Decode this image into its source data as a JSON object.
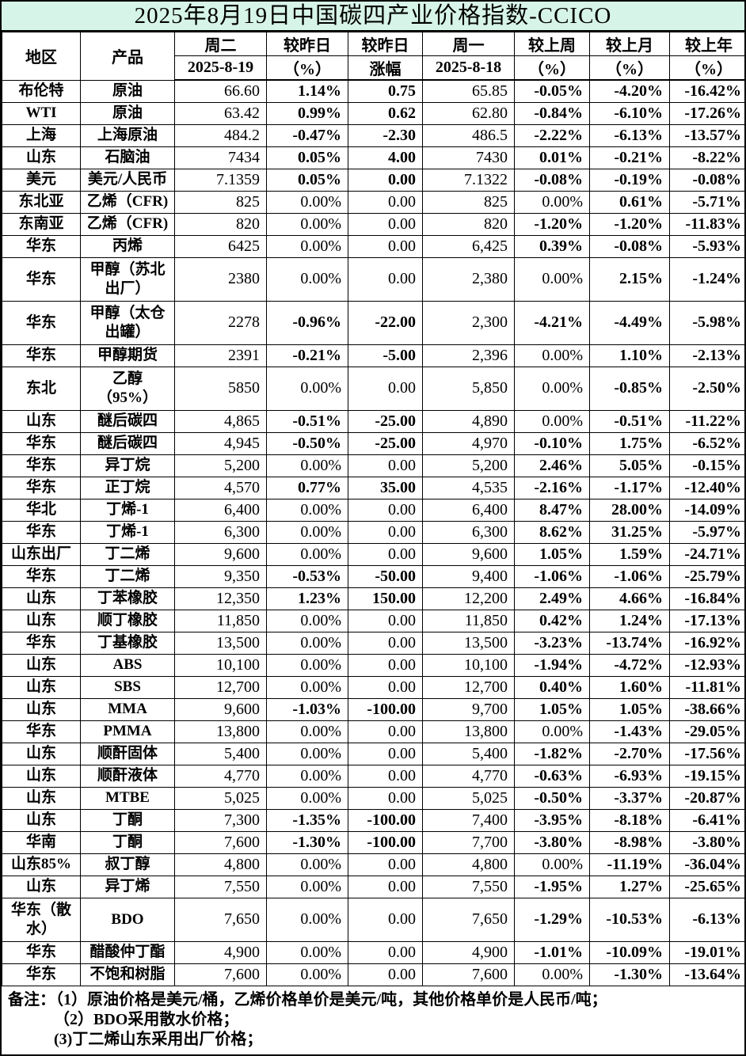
{
  "title": "2025年8月19日中国碳四产业价格指数-CCICO",
  "colors": {
    "red": "#FF0000",
    "green": "#00A95C",
    "black": "#000000",
    "title_bg": "#D7F4E8",
    "border": "#000000"
  },
  "table": {
    "corner_headers": {
      "region": "地区",
      "product": "产品"
    },
    "column_headers": [
      {
        "top": "周二",
        "bottom": "2025-8-19"
      },
      {
        "top": "较昨日",
        "bottom": "（%）"
      },
      {
        "top": "较昨日",
        "bottom": "涨幅"
      },
      {
        "top": "周一",
        "bottom": "2025-8-18"
      },
      {
        "top": "较上周",
        "bottom": "（%）"
      },
      {
        "top": "较上月",
        "bottom": "（%）"
      },
      {
        "top": "较上年",
        "bottom": "（%）"
      }
    ],
    "rows": [
      {
        "region": "布伦特",
        "product": "原油",
        "values": [
          "66.60",
          "1.14%",
          "0.75",
          "65.85",
          "-0.05%",
          "-4.20%",
          "-16.42%"
        ],
        "colors": [
          "k",
          "r",
          "r",
          "k",
          "g",
          "g",
          "g"
        ]
      },
      {
        "region": "WTI",
        "product": "原油",
        "values": [
          "63.42",
          "0.99%",
          "0.62",
          "62.80",
          "-0.84%",
          "-6.10%",
          "-17.26%"
        ],
        "colors": [
          "k",
          "r",
          "r",
          "k",
          "g",
          "g",
          "g"
        ]
      },
      {
        "region": "上海",
        "product": "上海原油",
        "values": [
          "484.2",
          "-0.47%",
          "-2.30",
          "486.5",
          "-2.22%",
          "-6.13%",
          "-13.57%"
        ],
        "colors": [
          "k",
          "g",
          "g",
          "k",
          "g",
          "g",
          "g"
        ]
      },
      {
        "region": "山东",
        "product": "石脑油",
        "values": [
          "7434",
          "0.05%",
          "4.00",
          "7430",
          "0.01%",
          "-0.21%",
          "-8.22%"
        ],
        "colors": [
          "k",
          "r",
          "r",
          "k",
          "r",
          "g",
          "g"
        ]
      },
      {
        "region": "美元",
        "product": "美元/人民币",
        "values": [
          "7.1359",
          "0.05%",
          "0.00",
          "7.1322",
          "-0.08%",
          "-0.19%",
          "-0.08%"
        ],
        "colors": [
          "k",
          "r",
          "r",
          "k",
          "g",
          "g",
          "g"
        ]
      },
      {
        "region": "东北亚",
        "product": "乙烯（CFR)",
        "values": [
          "825",
          "0.00%",
          "0.00",
          "825",
          "0.00%",
          "0.61%",
          "-5.71%"
        ],
        "colors": [
          "k",
          "k",
          "k",
          "k",
          "k",
          "r",
          "g"
        ]
      },
      {
        "region": "东南亚",
        "product": "乙烯（CFR)",
        "values": [
          "820",
          "0.00%",
          "0.00",
          "820",
          "-1.20%",
          "-1.20%",
          "-11.83%"
        ],
        "colors": [
          "k",
          "k",
          "k",
          "k",
          "g",
          "g",
          "g"
        ]
      },
      {
        "region": "华东",
        "product": "丙烯",
        "values": [
          "6425",
          "0.00%",
          "0.00",
          "6,425",
          "0.39%",
          "-0.08%",
          "-5.93%"
        ],
        "colors": [
          "k",
          "k",
          "k",
          "k",
          "r",
          "g",
          "g"
        ]
      },
      {
        "region": "华东",
        "product": "甲醇（苏北\n出厂）",
        "tall": true,
        "values": [
          "2380",
          "0.00%",
          "0.00",
          "2,380",
          "0.00%",
          "2.15%",
          "-1.24%"
        ],
        "colors": [
          "k",
          "k",
          "k",
          "k",
          "k",
          "r",
          "g"
        ]
      },
      {
        "region": "华东",
        "product": "甲醇（太仓\n出罐）",
        "tall": true,
        "values": [
          "2278",
          "-0.96%",
          "-22.00",
          "2,300",
          "-4.21%",
          "-4.49%",
          "-5.98%"
        ],
        "colors": [
          "k",
          "g",
          "g",
          "k",
          "g",
          "g",
          "g"
        ]
      },
      {
        "region": "华东",
        "product": "甲醇期货",
        "values": [
          "2391",
          "-0.21%",
          "-5.00",
          "2,396",
          "0.00%",
          "1.10%",
          "-2.13%"
        ],
        "colors": [
          "k",
          "g",
          "g",
          "k",
          "k",
          "r",
          "g"
        ]
      },
      {
        "region": "东北",
        "product": "乙醇\n（95%）",
        "tall": true,
        "values": [
          "5850",
          "0.00%",
          "0.00",
          "5,850",
          "0.00%",
          "-0.85%",
          "-2.50%"
        ],
        "colors": [
          "k",
          "k",
          "k",
          "k",
          "k",
          "g",
          "g"
        ]
      },
      {
        "region": "山东",
        "product": "醚后碳四",
        "values": [
          "4,865",
          "-0.51%",
          "-25.00",
          "4,890",
          "0.00%",
          "-0.51%",
          "-11.22%"
        ],
        "colors": [
          "k",
          "g",
          "g",
          "k",
          "k",
          "g",
          "g"
        ]
      },
      {
        "region": "华东",
        "product": "醚后碳四",
        "values": [
          "4,945",
          "-0.50%",
          "-25.00",
          "4,970",
          "-0.10%",
          "1.75%",
          "-6.52%"
        ],
        "colors": [
          "k",
          "g",
          "g",
          "k",
          "g",
          "r",
          "g"
        ]
      },
      {
        "region": "华东",
        "product": "异丁烷",
        "values": [
          "5,200",
          "0.00%",
          "0.00",
          "5,200",
          "2.46%",
          "5.05%",
          "-0.15%"
        ],
        "colors": [
          "k",
          "k",
          "k",
          "k",
          "r",
          "r",
          "g"
        ]
      },
      {
        "region": "华东",
        "product": "正丁烷",
        "values": [
          "4,570",
          "0.77%",
          "35.00",
          "4,535",
          "-2.16%",
          "-1.17%",
          "-12.40%"
        ],
        "colors": [
          "k",
          "r",
          "r",
          "k",
          "g",
          "g",
          "g"
        ]
      },
      {
        "region": "华北",
        "product": "丁烯-1",
        "values": [
          "6,400",
          "0.00%",
          "0.00",
          "6,400",
          "8.47%",
          "28.00%",
          "-14.09%"
        ],
        "colors": [
          "k",
          "k",
          "k",
          "k",
          "r",
          "r",
          "g"
        ]
      },
      {
        "region": "华东",
        "product": "丁烯-1",
        "values": [
          "6,300",
          "0.00%",
          "0.00",
          "6,300",
          "8.62%",
          "31.25%",
          "-5.97%"
        ],
        "colors": [
          "k",
          "k",
          "k",
          "k",
          "r",
          "r",
          "g"
        ]
      },
      {
        "region": "山东出厂",
        "product": "丁二烯",
        "values": [
          "9,600",
          "0.00%",
          "0.00",
          "9,600",
          "1.05%",
          "1.59%",
          "-24.71%"
        ],
        "colors": [
          "k",
          "k",
          "k",
          "k",
          "r",
          "r",
          "g"
        ]
      },
      {
        "region": "华东",
        "product": "丁二烯",
        "values": [
          "9,350",
          "-0.53%",
          "-50.00",
          "9,400",
          "-1.06%",
          "-1.06%",
          "-25.79%"
        ],
        "colors": [
          "k",
          "g",
          "g",
          "k",
          "g",
          "g",
          "g"
        ]
      },
      {
        "region": "山东",
        "product": "丁苯橡胶",
        "values": [
          "12,350",
          "1.23%",
          "150.00",
          "12,200",
          "2.49%",
          "4.66%",
          "-16.84%"
        ],
        "colors": [
          "k",
          "r",
          "r",
          "k",
          "r",
          "r",
          "g"
        ]
      },
      {
        "region": "山东",
        "product": "顺丁橡胶",
        "values": [
          "11,850",
          "0.00%",
          "0.00",
          "11,850",
          "0.42%",
          "1.24%",
          "-17.13%"
        ],
        "colors": [
          "k",
          "k",
          "k",
          "k",
          "r",
          "r",
          "g"
        ]
      },
      {
        "region": "华东",
        "product": "丁基橡胶",
        "values": [
          "13,500",
          "0.00%",
          "0.00",
          "13,500",
          "-3.23%",
          "-13.74%",
          "-16.92%"
        ],
        "colors": [
          "k",
          "k",
          "k",
          "k",
          "g",
          "g",
          "g"
        ]
      },
      {
        "region": "山东",
        "product": "ABS",
        "values": [
          "10,100",
          "0.00%",
          "0.00",
          "10,100",
          "-1.94%",
          "-4.72%",
          "-12.93%"
        ],
        "colors": [
          "k",
          "k",
          "k",
          "k",
          "g",
          "g",
          "g"
        ]
      },
      {
        "region": "山东",
        "product": "SBS",
        "values": [
          "12,700",
          "0.00%",
          "0.00",
          "12,700",
          "0.40%",
          "1.60%",
          "-11.81%"
        ],
        "colors": [
          "k",
          "k",
          "k",
          "k",
          "r",
          "r",
          "g"
        ]
      },
      {
        "region": "山东",
        "product": "MMA",
        "values": [
          "9,600",
          "-1.03%",
          "-100.00",
          "9,700",
          "1.05%",
          "1.05%",
          "-38.66%"
        ],
        "colors": [
          "k",
          "g",
          "g",
          "k",
          "r",
          "r",
          "g"
        ]
      },
      {
        "region": "华东",
        "product": "PMMA",
        "values": [
          "13,800",
          "0.00%",
          "0.00",
          "13,800",
          "0.00%",
          "-1.43%",
          "-29.05%"
        ],
        "colors": [
          "k",
          "k",
          "k",
          "k",
          "k",
          "g",
          "g"
        ]
      },
      {
        "region": "山东",
        "product": "顺酐固体",
        "values": [
          "5,400",
          "0.00%",
          "0.00",
          "5,400",
          "-1.82%",
          "-2.70%",
          "-17.56%"
        ],
        "colors": [
          "k",
          "k",
          "k",
          "k",
          "g",
          "g",
          "g"
        ]
      },
      {
        "region": "山东",
        "product": "顺酐液体",
        "values": [
          "4,770",
          "0.00%",
          "0.00",
          "4,770",
          "-0.63%",
          "-6.93%",
          "-19.15%"
        ],
        "colors": [
          "k",
          "k",
          "k",
          "k",
          "g",
          "g",
          "g"
        ]
      },
      {
        "region": "山东",
        "product": "MTBE",
        "values": [
          "5,025",
          "0.00%",
          "0.00",
          "5,025",
          "-0.50%",
          "-3.37%",
          "-20.87%"
        ],
        "colors": [
          "k",
          "k",
          "k",
          "k",
          "g",
          "g",
          "g"
        ]
      },
      {
        "region": "山东",
        "product": "丁酮",
        "values": [
          "7,300",
          "-1.35%",
          "-100.00",
          "7,400",
          "-3.95%",
          "-8.18%",
          "-6.41%"
        ],
        "colors": [
          "k",
          "g",
          "g",
          "k",
          "g",
          "g",
          "g"
        ]
      },
      {
        "region": "华南",
        "product": "丁酮",
        "values": [
          "7,600",
          "-1.30%",
          "-100.00",
          "7,700",
          "-3.80%",
          "-8.98%",
          "-3.80%"
        ],
        "colors": [
          "k",
          "g",
          "g",
          "k",
          "g",
          "g",
          "g"
        ]
      },
      {
        "region": "山东85%",
        "product": "叔丁醇",
        "values": [
          "4,800",
          "0.00%",
          "0.00",
          "4,800",
          "0.00%",
          "-11.19%",
          "-36.04%"
        ],
        "colors": [
          "k",
          "k",
          "k",
          "k",
          "k",
          "g",
          "g"
        ]
      },
      {
        "region": "山东",
        "product": "异丁烯",
        "values": [
          "7,550",
          "0.00%",
          "0.00",
          "7,550",
          "-1.95%",
          "1.27%",
          "-25.65%"
        ],
        "colors": [
          "k",
          "k",
          "k",
          "k",
          "g",
          "r",
          "g"
        ]
      },
      {
        "region": "华东（散\n水）",
        "product": "BDO",
        "tall": true,
        "values": [
          "7,650",
          "0.00%",
          "0.00",
          "7,650",
          "-1.29%",
          "-10.53%",
          "-6.13%"
        ],
        "colors": [
          "k",
          "k",
          "k",
          "k",
          "g",
          "g",
          "g"
        ]
      },
      {
        "region": "华东",
        "product": "醋酸仲丁酯",
        "values": [
          "4,900",
          "0.00%",
          "0.00",
          "4,900",
          "-1.01%",
          "-10.09%",
          "-19.01%"
        ],
        "colors": [
          "k",
          "k",
          "k",
          "k",
          "g",
          "g",
          "g"
        ]
      },
      {
        "region": "华东",
        "product": "不饱和树脂",
        "values": [
          "7,600",
          "0.00%",
          "0.00",
          "7,600",
          "0.00%",
          "-1.30%",
          "-13.64%"
        ],
        "colors": [
          "k",
          "k",
          "k",
          "k",
          "k",
          "g",
          "g"
        ]
      }
    ]
  },
  "notes": [
    "备注：（1）原油价格是美元/桶，乙烯价格单价是美元/吨，其他价格单价是人民币/吨；",
    "（2）BDO采用散水价格；",
    "(3)丁二烯山东采用出厂价格；"
  ]
}
